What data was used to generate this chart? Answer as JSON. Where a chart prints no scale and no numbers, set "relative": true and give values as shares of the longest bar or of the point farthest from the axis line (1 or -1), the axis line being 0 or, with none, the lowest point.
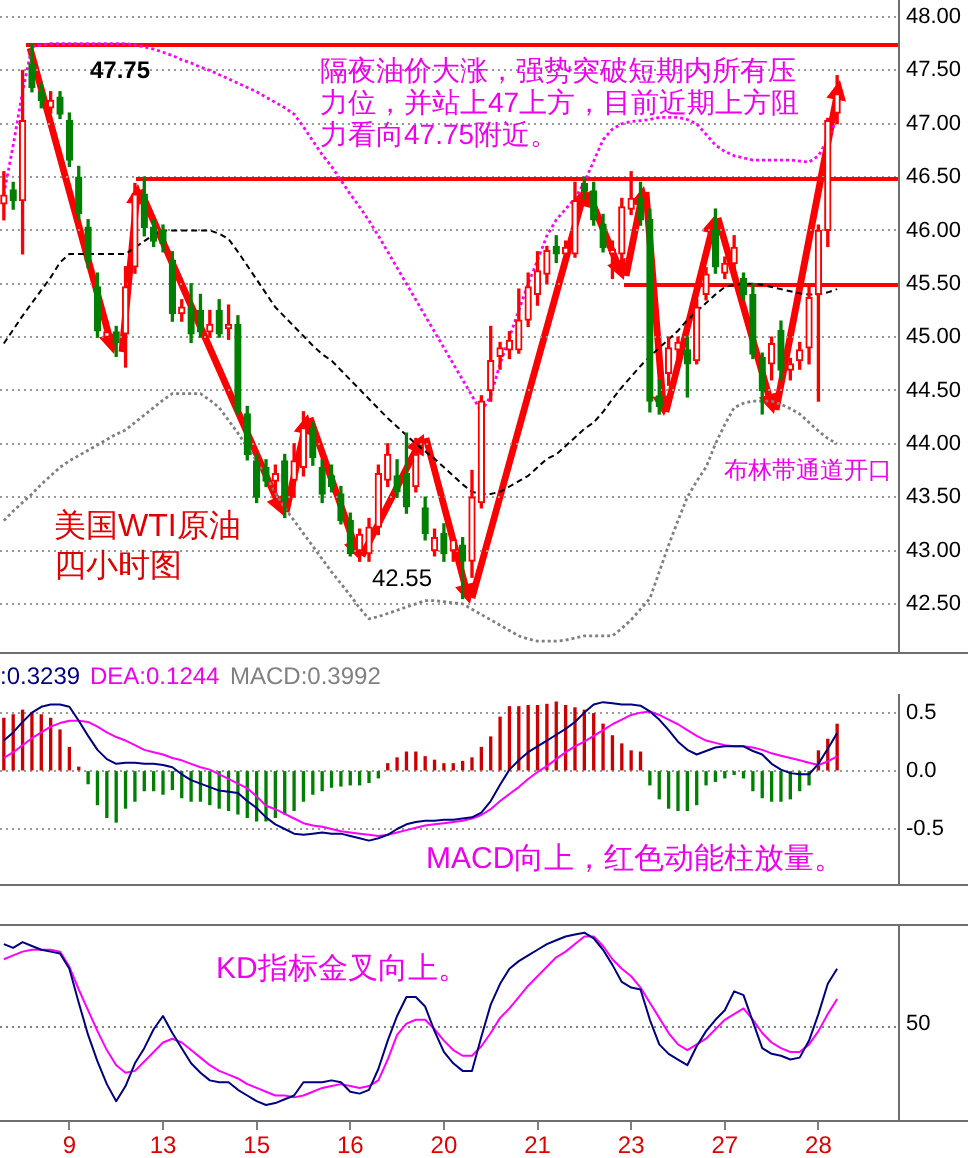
{
  "chart_data": [
    {
      "type": "candlestick",
      "categories": [
        null,
        null,
        null,
        null,
        null,
        null,
        null,
        "9",
        null,
        null,
        null,
        null,
        null,
        null,
        null,
        null,
        null,
        "13",
        null,
        null,
        null,
        null,
        null,
        null,
        null,
        null,
        null,
        "15",
        null,
        null,
        null,
        null,
        null,
        null,
        null,
        null,
        null,
        "16",
        null,
        null,
        null,
        null,
        null,
        null,
        null,
        null,
        null,
        "20",
        null,
        null,
        null,
        null,
        null,
        null,
        null,
        null,
        null,
        "21",
        null,
        null,
        null,
        null,
        null,
        null,
        null,
        null,
        null,
        "23",
        null,
        null,
        null,
        null,
        null,
        null,
        null,
        null,
        null,
        "27",
        null,
        null,
        null,
        null,
        null,
        null,
        null,
        null,
        null,
        "28",
        null,
        null
      ],
      "ohlc": [
        [
          46.25,
          46.55,
          46.1,
          46.33
        ],
        [
          46.38,
          46.45,
          46.2,
          46.28
        ],
        [
          46.28,
          47.5,
          45.78,
          47.03
        ],
        [
          47.56,
          47.75,
          47.3,
          47.34
        ],
        [
          47.3,
          47.38,
          47.15,
          47.22
        ],
        [
          47.15,
          47.3,
          47.1,
          47.22
        ],
        [
          47.25,
          47.3,
          47.05,
          47.09
        ],
        [
          47.03,
          47.1,
          46.6,
          46.66
        ],
        [
          46.5,
          46.6,
          46.1,
          46.16
        ],
        [
          46.03,
          46.1,
          45.65,
          45.72
        ],
        [
          45.47,
          45.6,
          45.0,
          45.06
        ],
        [
          45.0,
          45.15,
          44.95,
          45.05
        ],
        [
          45.05,
          45.1,
          44.82,
          44.95
        ],
        [
          45.03,
          45.66,
          44.72,
          45.47
        ],
        [
          45.66,
          46.44,
          45.6,
          46.34
        ],
        [
          46.34,
          46.5,
          45.95,
          46.03
        ],
        [
          46.03,
          46.1,
          45.85,
          45.9
        ],
        [
          46.0,
          46.05,
          45.8,
          45.88
        ],
        [
          45.72,
          45.8,
          45.15,
          45.22
        ],
        [
          45.22,
          45.35,
          45.15,
          45.28
        ],
        [
          45.28,
          45.5,
          44.95,
          45.03
        ],
        [
          45.25,
          45.4,
          45.0,
          45.05
        ],
        [
          45.05,
          45.25,
          45.0,
          45.12
        ],
        [
          45.25,
          45.35,
          45.0,
          45.03
        ],
        [
          45.08,
          45.3,
          44.98,
          45.12
        ],
        [
          45.12,
          45.2,
          44.28,
          44.31
        ],
        [
          44.28,
          44.35,
          43.85,
          43.9
        ],
        [
          43.84,
          43.9,
          43.45,
          43.5
        ],
        [
          43.78,
          43.85,
          43.6,
          43.65
        ],
        [
          43.65,
          43.8,
          43.55,
          43.72
        ],
        [
          43.84,
          43.9,
          43.31,
          43.47
        ],
        [
          43.66,
          44.0,
          43.5,
          43.84
        ],
        [
          43.78,
          44.3,
          43.7,
          44.15
        ],
        [
          44.15,
          44.2,
          43.8,
          43.87
        ],
        [
          43.78,
          43.85,
          43.45,
          43.53
        ],
        [
          43.7,
          43.8,
          43.55,
          43.6
        ],
        [
          43.53,
          43.6,
          43.25,
          43.28
        ],
        [
          43.28,
          43.35,
          42.95,
          42.97
        ],
        [
          43.0,
          43.2,
          42.9,
          43.15
        ],
        [
          42.97,
          43.3,
          42.9,
          43.22
        ],
        [
          43.22,
          43.8,
          43.15,
          43.72
        ],
        [
          43.66,
          44.0,
          43.6,
          43.9
        ],
        [
          43.7,
          43.85,
          43.5,
          43.55
        ],
        [
          43.72,
          44.1,
          43.35,
          43.41
        ],
        [
          43.6,
          44.05,
          43.55,
          43.9
        ],
        [
          43.4,
          43.5,
          43.1,
          43.16
        ],
        [
          43.0,
          43.2,
          42.95,
          43.12
        ],
        [
          43.16,
          43.25,
          42.9,
          42.97
        ],
        [
          43.0,
          43.15,
          42.9,
          43.1
        ],
        [
          43.05,
          43.12,
          42.55,
          42.9
        ],
        [
          42.9,
          43.75,
          42.75,
          43.5
        ],
        [
          43.45,
          44.45,
          43.4,
          44.4
        ],
        [
          44.5,
          45.1,
          44.4,
          44.78
        ],
        [
          44.82,
          44.95,
          44.7,
          44.9
        ],
        [
          44.88,
          45.05,
          44.8,
          44.97
        ],
        [
          44.88,
          45.45,
          44.85,
          45.16
        ],
        [
          45.16,
          45.6,
          45.1,
          45.47
        ],
        [
          45.4,
          45.8,
          45.3,
          45.62
        ],
        [
          45.59,
          45.85,
          45.5,
          45.81
        ],
        [
          45.85,
          45.95,
          45.7,
          45.78
        ],
        [
          45.78,
          45.9,
          45.7,
          45.84
        ],
        [
          45.78,
          46.45,
          45.75,
          46.28
        ],
        [
          46.44,
          46.5,
          46.3,
          46.37
        ],
        [
          46.37,
          46.45,
          46.05,
          46.1
        ],
        [
          46.06,
          46.15,
          45.8,
          45.84
        ],
        [
          45.78,
          45.9,
          45.55,
          45.82
        ],
        [
          45.78,
          46.3,
          45.7,
          46.22
        ],
        [
          46.2,
          46.55,
          46.15,
          46.3
        ],
        [
          46.3,
          46.45,
          46.05,
          46.1
        ],
        [
          46.1,
          46.2,
          44.3,
          44.4
        ],
        [
          44.45,
          44.6,
          44.28,
          44.35
        ],
        [
          44.66,
          45.0,
          44.55,
          44.9
        ],
        [
          44.88,
          45.0,
          44.8,
          44.95
        ],
        [
          44.88,
          45.0,
          44.44,
          44.75
        ],
        [
          44.78,
          45.35,
          44.75,
          45.28
        ],
        [
          45.4,
          45.65,
          45.35,
          45.59
        ],
        [
          46.0,
          46.2,
          45.6,
          45.66
        ],
        [
          45.6,
          45.75,
          45.55,
          45.69
        ],
        [
          45.69,
          45.95,
          45.6,
          45.84
        ],
        [
          45.55,
          45.6,
          45.35,
          45.4
        ],
        [
          45.4,
          45.5,
          44.8,
          44.84
        ],
        [
          44.81,
          44.85,
          44.28,
          44.5
        ],
        [
          44.75,
          45.0,
          44.6,
          44.94
        ],
        [
          45.06,
          45.15,
          44.6,
          44.69
        ],
        [
          44.69,
          44.8,
          44.6,
          44.75
        ],
        [
          44.78,
          44.95,
          44.7,
          44.88
        ],
        [
          44.9,
          45.5,
          44.75,
          45.37
        ],
        [
          45.4,
          46.05,
          44.4,
          46.0
        ],
        [
          46.0,
          47.05,
          45.85,
          47.03
        ],
        [
          47.1,
          47.45,
          47.0,
          47.28
        ]
      ],
      "colors": [
        "#ff0000",
        "#008000",
        "#ff0000",
        "#008000",
        "#008000",
        "#ff0000",
        "#008000",
        "#008000",
        "#008000",
        "#008000",
        "#008000",
        "#ff0000",
        "#008000",
        "#ff0000",
        "#ff0000",
        "#008000",
        "#008000",
        "#008000",
        "#008000",
        "#ff0000",
        "#008000",
        "#008000",
        "#ff0000",
        "#008000",
        "#ff0000",
        "#008000",
        "#008000",
        "#008000",
        "#008000",
        "#ff0000",
        "#008000",
        "#ff0000",
        "#ff0000",
        "#008000",
        "#008000",
        "#008000",
        "#008000",
        "#008000",
        "#ff0000",
        "#ff0000",
        "#ff0000",
        "#ff0000",
        "#008000",
        "#008000",
        "#ff0000",
        "#008000",
        "#ff0000",
        "#008000",
        "#ff0000",
        "#008000",
        "#ff0000",
        "#ff0000",
        "#ff0000",
        "#ff0000",
        "#ff0000",
        "#ff0000",
        "#ff0000",
        "#ff0000",
        "#ff0000",
        "#008000",
        "#ff0000",
        "#ff0000",
        "#008000",
        "#008000",
        "#008000",
        "#ff0000",
        "#ff0000",
        "#ff0000",
        "#008000",
        "#008000",
        "#008000",
        "#ff0000",
        "#ff0000",
        "#008000",
        "#ff0000",
        "#ff0000",
        "#008000",
        "#ff0000",
        "#ff0000",
        "#008000",
        "#008000",
        "#008000",
        "#ff0000",
        "#008000",
        "#ff0000",
        "#ff0000",
        "#ff0000",
        "#ff0000",
        "#ff0000",
        "#ff0000"
      ],
      "series": [
        {
          "type": "line",
          "color": "#ff00ff",
          "line_style": "dotted",
          "values": [
            46.34,
            46.8,
            47.3,
            47.72,
            47.74,
            47.75,
            47.75,
            47.75,
            47.75,
            47.75,
            47.75,
            47.75,
            47.75,
            47.75,
            47.74,
            47.72,
            47.7,
            47.67,
            47.64,
            47.6,
            47.57,
            47.53,
            47.5,
            47.46,
            47.42,
            47.38,
            47.34,
            47.3,
            47.25,
            47.2,
            47.15,
            47.09,
            46.97,
            46.84,
            46.71,
            46.6,
            46.47,
            46.34,
            46.22,
            46.09,
            45.95,
            45.8,
            45.65,
            45.5,
            45.35,
            45.2,
            45.05,
            44.9,
            44.75,
            44.6,
            44.45,
            44.3,
            44.45,
            44.75,
            45.0,
            45.25,
            45.5,
            45.72,
            45.95,
            46.1,
            46.2,
            46.3,
            46.45,
            46.65,
            46.85,
            46.95,
            47.0,
            47.02,
            47.03,
            47.04,
            47.06,
            47.06,
            47.06,
            47.04,
            47.0,
            46.9,
            46.8,
            46.74,
            46.7,
            46.68,
            46.66,
            46.66,
            46.66,
            46.66,
            46.66,
            46.65,
            46.64,
            46.7,
            46.85,
            47.05
          ]
        },
        {
          "type": "line",
          "color": "#000000",
          "line_style": "dashed",
          "values": [
            44.94,
            45.07,
            45.2,
            45.32,
            45.44,
            45.56,
            45.7,
            45.78,
            45.78,
            45.78,
            45.78,
            45.78,
            45.78,
            45.78,
            45.84,
            45.9,
            45.96,
            46.0,
            46.0,
            46.0,
            46.0,
            46.0,
            46.0,
            45.97,
            45.92,
            45.8,
            45.67,
            45.54,
            45.41,
            45.28,
            45.19,
            45.1,
            45.01,
            44.92,
            44.84,
            44.78,
            44.69,
            44.6,
            44.51,
            44.42,
            44.33,
            44.24,
            44.16,
            44.08,
            44.0,
            43.93,
            43.86,
            43.78,
            43.7,
            43.62,
            43.55,
            43.53,
            43.53,
            43.55,
            43.6,
            43.65,
            43.7,
            43.78,
            43.86,
            43.9,
            43.98,
            44.06,
            44.14,
            44.2,
            44.3,
            44.42,
            44.53,
            44.63,
            44.73,
            44.82,
            44.9,
            44.98,
            45.06,
            45.16,
            45.24,
            45.32,
            45.4,
            45.47,
            45.49,
            45.5,
            45.5,
            45.49,
            45.47,
            45.45,
            45.43,
            45.41,
            45.4,
            45.4,
            45.42,
            45.45
          ]
        },
        {
          "type": "line",
          "color": "#808080",
          "line_style": "dotted",
          "values": [
            43.28,
            43.37,
            43.45,
            43.53,
            43.62,
            43.7,
            43.78,
            43.84,
            43.89,
            43.94,
            43.99,
            44.04,
            44.09,
            44.13,
            44.2,
            44.27,
            44.34,
            44.41,
            44.47,
            44.47,
            44.47,
            44.47,
            44.41,
            44.34,
            44.22,
            44.1,
            43.97,
            43.84,
            43.7,
            43.54,
            43.4,
            43.28,
            43.16,
            43.04,
            42.92,
            42.8,
            42.69,
            42.58,
            42.46,
            42.36,
            42.38,
            42.41,
            42.44,
            42.47,
            42.5,
            42.53,
            42.53,
            42.52,
            42.51,
            42.5,
            42.45,
            42.4,
            42.35,
            42.3,
            42.25,
            42.2,
            42.17,
            42.15,
            42.15,
            42.15,
            42.16,
            42.18,
            42.2,
            42.2,
            42.2,
            42.2,
            42.27,
            42.35,
            42.45,
            42.55,
            42.8,
            43.05,
            43.28,
            43.5,
            43.65,
            43.78,
            44.0,
            44.18,
            44.34,
            44.38,
            44.4,
            44.4,
            44.4,
            44.37,
            44.33,
            44.28,
            44.2,
            44.12,
            44.05,
            44.0
          ]
        }
      ],
      "ylim": [
        42.03,
        48.16
      ],
      "yticks": [
        {
          "value": 42.5,
          "label": "42.50"
        },
        {
          "value": 43,
          "label": "43.00"
        },
        {
          "value": 43.5,
          "label": "43.50"
        },
        {
          "value": 44,
          "label": "44.00"
        },
        {
          "value": 44.5,
          "label": "44.50"
        },
        {
          "value": 45,
          "label": "45.00"
        },
        {
          "value": 45.5,
          "label": "45.50"
        },
        {
          "value": 46,
          "label": "46.00"
        },
        {
          "value": 46.5,
          "label": "46.50"
        },
        {
          "value": 47,
          "label": "47.00"
        },
        {
          "value": 47.5,
          "label": "47.50"
        },
        {
          "value": 48,
          "label": "48.00"
        }
      ],
      "grid": "y",
      "tick_labels": "y",
      "ref_lines": [
        {
          "axis": "y",
          "value": 47.75,
          "label": "47.75",
          "color": "#ff0000"
        },
        {
          "axis": "y",
          "value": 46.5,
          "color": "#ff0000"
        },
        {
          "axis": "y",
          "value": 45.5,
          "color": "#ff0000"
        }
      ],
      "annotations": [
        "隔夜油价大涨，强势突破短期内所有压力位，并站上47上方，目前近期上方阻力看向47.75附近。",
        "美国WTI原油",
        "四小时图",
        "布林带通道开口",
        "42.55"
      ]
    },
    {
      "type": "bar",
      "categories": [
        null,
        null,
        null,
        null,
        null,
        null,
        null,
        "9",
        null,
        null,
        null,
        null,
        null,
        null,
        null,
        null,
        null,
        "13",
        null,
        null,
        null,
        null,
        null,
        null,
        null,
        null,
        null,
        "15",
        null,
        null,
        null,
        null,
        null,
        null,
        null,
        null,
        null,
        "16",
        null,
        null,
        null,
        null,
        null,
        null,
        null,
        null,
        null,
        "20",
        null,
        null,
        null,
        null,
        null,
        null,
        null,
        null,
        null,
        "21",
        null,
        null,
        null,
        null,
        null,
        null,
        null,
        null,
        null,
        "23",
        null,
        null,
        null,
        null,
        null,
        null,
        null,
        null,
        null,
        "27",
        null,
        null,
        null,
        null,
        null,
        null,
        null,
        null,
        null,
        "28",
        null,
        null
      ],
      "series": [
        {
          "type": "bar",
          "colors": [
            "#cc0000",
            "#cc0000",
            "#cc0000",
            "#cc0000",
            "#cc0000",
            "#cc0000",
            "#cc0000",
            "#cc0000",
            "#cc0000",
            "#008000",
            "#008000",
            "#008000",
            "#008000",
            "#008000",
            "#008000",
            "#008000",
            "#008000",
            "#008000",
            "#008000",
            "#008000",
            "#008000",
            "#008000",
            "#008000",
            "#008000",
            "#008000",
            "#008000",
            "#008000",
            "#008000",
            "#008000",
            "#008000",
            "#008000",
            "#008000",
            "#008000",
            "#008000",
            "#008000",
            "#008000",
            "#008000",
            "#008000",
            "#008000",
            "#008000",
            "#008000",
            "#cc0000",
            "#cc0000",
            "#cc0000",
            "#cc0000",
            "#cc0000",
            "#cc0000",
            "#cc0000",
            "#cc0000",
            "#cc0000",
            "#cc0000",
            "#cc0000",
            "#cc0000",
            "#cc0000",
            "#cc0000",
            "#cc0000",
            "#cc0000",
            "#cc0000",
            "#cc0000",
            "#cc0000",
            "#cc0000",
            "#cc0000",
            "#cc0000",
            "#cc0000",
            "#cc0000",
            "#cc0000",
            "#cc0000",
            "#cc0000",
            "#cc0000",
            "#008000",
            "#008000",
            "#008000",
            "#008000",
            "#008000",
            "#008000",
            "#008000",
            "#008000",
            "#008000",
            "#008000",
            "#008000",
            "#008000",
            "#008000",
            "#008000",
            "#008000",
            "#008000",
            "#008000",
            "#008000",
            "#cc0000",
            "#cc0000",
            "#cc0000"
          ],
          "values": [
            0.45,
            0.48,
            0.52,
            0.5,
            0.48,
            0.45,
            0.35,
            0.2,
            0.03,
            -0.11,
            -0.29,
            -0.4,
            -0.44,
            -0.32,
            -0.26,
            -0.17,
            -0.17,
            -0.2,
            -0.16,
            -0.23,
            -0.26,
            -0.26,
            -0.29,
            -0.32,
            -0.34,
            -0.37,
            -0.4,
            -0.43,
            -0.43,
            -0.4,
            -0.37,
            -0.34,
            -0.26,
            -0.2,
            -0.17,
            -0.14,
            -0.13,
            -0.12,
            -0.12,
            -0.1,
            -0.06,
            0.06,
            0.11,
            0.16,
            0.16,
            0.12,
            0.09,
            0.06,
            0.06,
            0.08,
            0.11,
            0.2,
            0.29,
            0.46,
            0.55,
            0.55,
            0.56,
            0.56,
            0.57,
            0.59,
            0.56,
            0.54,
            0.52,
            0.49,
            0.4,
            0.3,
            0.23,
            0.17,
            0.16,
            -0.12,
            -0.24,
            -0.32,
            -0.34,
            -0.34,
            -0.29,
            -0.12,
            -0.09,
            -0.06,
            -0.03,
            -0.06,
            -0.17,
            -0.23,
            -0.26,
            -0.26,
            -0.24,
            -0.17,
            -0.12,
            0.17,
            0.27,
            0.3992
          ]
        },
        {
          "type": "line",
          "color": "#000080",
          "values": [
            0.26,
            0.33,
            0.42,
            0.5,
            0.55,
            0.57,
            0.57,
            0.55,
            0.43,
            0.3,
            0.18,
            0.1,
            0.06,
            0.07,
            0.07,
            0.06,
            0.06,
            0.05,
            0.03,
            -0.03,
            -0.08,
            -0.11,
            -0.14,
            -0.17,
            -0.18,
            -0.19,
            -0.26,
            -0.32,
            -0.4,
            -0.46,
            -0.5,
            -0.54,
            -0.55,
            -0.54,
            -0.53,
            -0.54,
            -0.54,
            -0.56,
            -0.58,
            -0.6,
            -0.58,
            -0.55,
            -0.5,
            -0.46,
            -0.44,
            -0.43,
            -0.43,
            -0.42,
            -0.42,
            -0.41,
            -0.4,
            -0.36,
            -0.26,
            -0.12,
            0.01,
            0.09,
            0.16,
            0.21,
            0.26,
            0.31,
            0.36,
            0.42,
            0.5,
            0.57,
            0.59,
            0.58,
            0.57,
            0.57,
            0.56,
            0.51,
            0.44,
            0.35,
            0.25,
            0.18,
            0.14,
            0.17,
            0.2,
            0.21,
            0.21,
            0.21,
            0.17,
            0.14,
            0.06,
            0.01,
            -0.02,
            -0.03,
            -0.03,
            0.06,
            0.19,
            0.3239
          ]
        },
        {
          "type": "line",
          "color": "#ff00ff",
          "values": [
            0.11,
            0.16,
            0.22,
            0.28,
            0.33,
            0.38,
            0.41,
            0.43,
            0.43,
            0.42,
            0.38,
            0.33,
            0.29,
            0.26,
            0.22,
            0.18,
            0.16,
            0.14,
            0.11,
            0.09,
            0.06,
            0.03,
            0.01,
            -0.03,
            -0.07,
            -0.11,
            -0.15,
            -0.22,
            -0.3,
            -0.33,
            -0.37,
            -0.41,
            -0.45,
            -0.47,
            -0.48,
            -0.5,
            -0.52,
            -0.53,
            -0.54,
            -0.55,
            -0.56,
            -0.55,
            -0.53,
            -0.51,
            -0.49,
            -0.47,
            -0.46,
            -0.45,
            -0.44,
            -0.43,
            -0.41,
            -0.38,
            -0.33,
            -0.26,
            -0.2,
            -0.14,
            -0.07,
            -0.01,
            0.04,
            0.1,
            0.16,
            0.21,
            0.25,
            0.3,
            0.35,
            0.4,
            0.44,
            0.48,
            0.5,
            0.51,
            0.48,
            0.44,
            0.4,
            0.35,
            0.3,
            0.26,
            0.24,
            0.22,
            0.21,
            0.21,
            0.2,
            0.18,
            0.15,
            0.13,
            0.11,
            0.09,
            0.07,
            0.05,
            0.08,
            0.1244
          ]
        }
      ],
      "ylim": [
        -0.99,
        0.66
      ],
      "yticks": [
        -0.5,
        {
          "value": 0,
          "label": "0.0"
        },
        0.5
      ],
      "grid": "y",
      "tick_labels": "y",
      "annotations": [
        ":0.3239",
        "DEA:0.1244",
        "MACD:0.3992",
        "MACD向上，红色动能柱放量。"
      ]
    },
    {
      "type": "line",
      "categories": [
        null,
        null,
        null,
        null,
        null,
        null,
        null,
        "9",
        null,
        null,
        null,
        null,
        null,
        null,
        null,
        null,
        null,
        "13",
        null,
        null,
        null,
        null,
        null,
        null,
        null,
        null,
        null,
        "15",
        null,
        null,
        null,
        null,
        null,
        null,
        null,
        null,
        null,
        "16",
        null,
        null,
        null,
        null,
        null,
        null,
        null,
        null,
        null,
        "20",
        null,
        null,
        null,
        null,
        null,
        null,
        null,
        null,
        null,
        "21",
        null,
        null,
        null,
        null,
        null,
        null,
        null,
        null,
        null,
        "23",
        null,
        null,
        null,
        null,
        null,
        null,
        null,
        null,
        null,
        "27",
        null,
        null,
        null,
        null,
        null,
        null,
        null,
        null,
        null,
        "28",
        null,
        null
      ],
      "relative": true,
      "series": [
        {
          "color": "#000080",
          "values": [
            0.94,
            0.92,
            0.95,
            0.93,
            0.91,
            0.9,
            0.89,
            0.81,
            0.63,
            0.46,
            0.32,
            0.2,
            0.11,
            0.19,
            0.31,
            0.39,
            0.49,
            0.56,
            0.47,
            0.39,
            0.31,
            0.26,
            0.22,
            0.21,
            0.21,
            0.17,
            0.14,
            0.11,
            0.09,
            0.1,
            0.12,
            0.14,
            0.21,
            0.21,
            0.21,
            0.22,
            0.21,
            0.16,
            0.15,
            0.17,
            0.28,
            0.43,
            0.56,
            0.66,
            0.66,
            0.61,
            0.48,
            0.37,
            0.31,
            0.27,
            0.27,
            0.45,
            0.62,
            0.73,
            0.81,
            0.85,
            0.88,
            0.91,
            0.94,
            0.96,
            0.98,
            0.99,
            1,
            0.97,
            0.91,
            0.83,
            0.74,
            0.71,
            0.7,
            0.54,
            0.41,
            0.36,
            0.33,
            0.3,
            0.4,
            0.48,
            0.54,
            0.59,
            0.69,
            0.67,
            0.53,
            0.39,
            0.36,
            0.35,
            0.33,
            0.34,
            0.43,
            0.57,
            0.73,
            0.81
          ]
        },
        {
          "color": "#ff00ff",
          "values": [
            0.86,
            0.88,
            0.9,
            0.91,
            0.91,
            0.91,
            0.9,
            0.82,
            0.7,
            0.59,
            0.48,
            0.38,
            0.3,
            0.26,
            0.27,
            0.32,
            0.37,
            0.42,
            0.44,
            0.42,
            0.38,
            0.34,
            0.3,
            0.27,
            0.25,
            0.23,
            0.2,
            0.18,
            0.16,
            0.14,
            0.14,
            0.13,
            0.14,
            0.16,
            0.18,
            0.19,
            0.2,
            0.19,
            0.18,
            0.19,
            0.22,
            0.33,
            0.46,
            0.52,
            0.54,
            0.54,
            0.49,
            0.43,
            0.38,
            0.35,
            0.35,
            0.4,
            0.47,
            0.55,
            0.6,
            0.66,
            0.72,
            0.77,
            0.82,
            0.87,
            0.9,
            0.94,
            0.98,
            0.98,
            0.93,
            0.86,
            0.81,
            0.77,
            0.71,
            0.63,
            0.55,
            0.47,
            0.41,
            0.38,
            0.41,
            0.44,
            0.49,
            0.54,
            0.57,
            0.6,
            0.54,
            0.47,
            0.42,
            0.39,
            0.37,
            0.37,
            0.41,
            0.48,
            0.57,
            0.65
          ]
        }
      ],
      "tick_labels": "x",
      "ref_lines": [
        {
          "axis": "y",
          "value": 0.51,
          "color": "#808080",
          "line_style": "dotted"
        }
      ],
      "annotations": [
        "KD指标金叉向上。",
        "50"
      ]
    }
  ]
}
